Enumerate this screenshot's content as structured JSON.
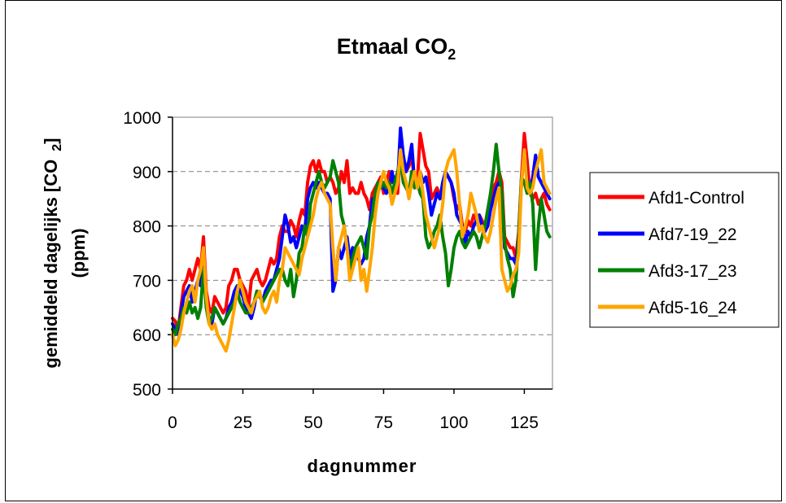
{
  "chart_data": {
    "type": "line",
    "title": "Etmaal CO",
    "title_subscript": "2",
    "xlabel": "dagnummer",
    "ylabel_line1": "gemiddeld dagelijks [CO",
    "ylabel_sub": "2",
    "ylabel_close": "]",
    "ylabel_line2": "(ppm)",
    "xlim": [
      0,
      135
    ],
    "ylim": [
      500,
      1000
    ],
    "xticks": [
      0,
      25,
      50,
      75,
      100,
      125
    ],
    "yticks": [
      500,
      600,
      700,
      800,
      900,
      1000
    ],
    "grid": "horizontal dashed",
    "legend_position": "right",
    "series": [
      {
        "name": "Afd1-Control",
        "color": "#ff0000",
        "values": [
          630,
          625,
          610,
          650,
          690,
          700,
          720,
          700,
          720,
          740,
          720,
          780,
          680,
          650,
          640,
          670,
          660,
          650,
          640,
          650,
          690,
          700,
          720,
          720,
          700,
          690,
          680,
          650,
          700,
          710,
          720,
          700,
          690,
          700,
          720,
          740,
          730,
          740,
          780,
          800,
          790,
          790,
          810,
          800,
          780,
          810,
          830,
          820,
          880,
          910,
          920,
          900,
          920,
          900,
          900,
          880,
          890,
          880,
          860,
          870,
          900,
          880,
          920,
          860,
          870,
          860,
          860,
          880,
          860,
          850,
          830,
          860,
          870,
          880,
          890,
          860,
          880,
          900,
          880,
          890,
          860,
          950,
          920,
          900,
          910,
          930,
          880,
          880,
          970,
          940,
          910,
          900,
          850,
          860,
          870,
          850,
          860,
          900,
          890,
          880,
          850,
          830,
          840,
          800,
          790,
          810,
          800,
          820,
          810,
          820,
          810,
          790,
          800,
          840,
          870,
          880,
          900,
          880,
          780,
          770,
          760,
          760,
          740,
          790,
          890,
          970,
          920,
          860,
          850,
          860,
          840,
          850,
          860,
          840,
          830
        ]
      },
      {
        "name": "Afd7-19_22",
        "color": "#0000ff",
        "values": [
          620,
          610,
          600,
          640,
          670,
          680,
          690,
          660,
          680,
          700,
          690,
          740,
          660,
          630,
          620,
          650,
          640,
          630,
          620,
          630,
          650,
          660,
          680,
          690,
          680,
          670,
          650,
          640,
          630,
          650,
          680,
          670,
          660,
          680,
          690,
          700,
          700,
          720,
          740,
          780,
          820,
          800,
          770,
          780,
          760,
          780,
          800,
          790,
          850,
          870,
          880,
          870,
          880,
          870,
          860,
          860,
          850,
          680,
          700,
          760,
          740,
          760,
          780,
          740,
          760,
          750,
          740,
          730,
          740,
          780,
          800,
          850,
          840,
          860,
          880,
          870,
          860,
          870,
          900,
          870,
          880,
          980,
          930,
          900,
          920,
          950,
          880,
          870,
          900,
          880,
          890,
          860,
          820,
          840,
          860,
          850,
          880,
          900,
          890,
          880,
          860,
          820,
          810,
          800,
          770,
          790,
          780,
          800,
          810,
          820,
          800,
          790,
          800,
          830,
          850,
          870,
          880,
          860,
          760,
          750,
          740,
          740,
          730,
          780,
          880,
          940,
          880,
          860,
          890,
          930,
          890,
          880,
          870,
          860,
          850
        ]
      },
      {
        "name": "Afd3-17_23",
        "color": "#008000",
        "values": [
          610,
          600,
          620,
          630,
          650,
          640,
          660,
          640,
          650,
          630,
          650,
          720,
          650,
          620,
          630,
          650,
          640,
          630,
          620,
          630,
          640,
          650,
          660,
          680,
          660,
          650,
          640,
          640,
          650,
          660,
          680,
          670,
          660,
          670,
          680,
          690,
          700,
          710,
          720,
          720,
          700,
          690,
          720,
          670,
          700,
          750,
          760,
          800,
          780,
          840,
          860,
          880,
          900,
          880,
          870,
          880,
          890,
          920,
          900,
          880,
          820,
          800,
          760,
          720,
          740,
          760,
          770,
          780,
          760,
          740,
          800,
          820,
          860,
          880,
          870,
          880,
          870,
          880,
          860,
          880,
          900,
          920,
          880,
          870,
          860,
          900,
          870,
          880,
          860,
          850,
          780,
          760,
          770,
          790,
          800,
          820,
          780,
          750,
          690,
          720,
          760,
          780,
          790,
          770,
          760,
          770,
          780,
          790,
          780,
          760,
          780,
          800,
          830,
          860,
          900,
          950,
          900,
          860,
          770,
          740,
          720,
          670,
          700,
          780,
          890,
          880,
          860,
          880,
          840,
          720,
          800,
          850,
          820,
          790,
          780
        ]
      },
      {
        "name": "Afd5-16_24",
        "color": "#ffa500",
        "values": [
          600,
          580,
          590,
          610,
          640,
          660,
          680,
          690,
          660,
          700,
          720,
          760,
          670,
          620,
          610,
          620,
          600,
          590,
          580,
          570,
          590,
          620,
          650,
          680,
          700,
          680,
          660,
          650,
          640,
          660,
          670,
          680,
          650,
          640,
          650,
          670,
          680,
          660,
          700,
          720,
          760,
          750,
          740,
          730,
          720,
          710,
          740,
          760,
          780,
          800,
          820,
          850,
          870,
          880,
          860,
          850,
          840,
          760,
          700,
          760,
          780,
          800,
          760,
          700,
          720,
          740,
          760,
          700,
          720,
          680,
          720,
          760,
          820,
          860,
          880,
          900,
          880,
          870,
          840,
          860,
          880,
          940,
          900,
          880,
          850,
          880,
          900,
          870,
          900,
          860,
          820,
          800,
          780,
          760,
          780,
          800,
          840,
          900,
          920,
          930,
          940,
          900,
          840,
          780,
          800,
          820,
          860,
          840,
          820,
          790,
          800,
          780,
          770,
          790,
          820,
          850,
          870,
          720,
          700,
          680,
          690,
          710,
          720,
          750,
          880,
          940,
          870,
          860,
          870,
          900,
          920,
          940,
          880,
          870,
          860
        ]
      }
    ]
  }
}
